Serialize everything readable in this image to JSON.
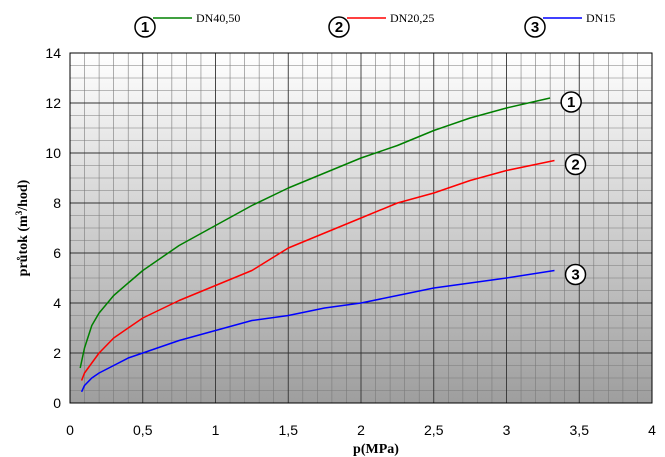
{
  "chart_data": {
    "type": "line",
    "xlabel": "p(MPa)",
    "ylabel_main": "průtok (m",
    "ylabel_sup": "3",
    "ylabel_tail": "/hod)",
    "xlim": [
      0,
      4
    ],
    "ylim": [
      0,
      14
    ],
    "xticks": [
      0,
      0.5,
      1,
      1.5,
      2,
      2.5,
      3,
      3.5,
      4
    ],
    "xtick_labels": [
      "0",
      "0,5",
      "1",
      "1,5",
      "2",
      "2,5",
      "3",
      "3,5",
      "4"
    ],
    "yticks": [
      0,
      2,
      4,
      6,
      8,
      10,
      12,
      14
    ],
    "ytick_labels": [
      "0",
      "2",
      "4",
      "6",
      "8",
      "10",
      "12",
      "14"
    ],
    "grid": true,
    "background": "gradient-gray",
    "legend_position": "top",
    "series": [
      {
        "marker": "1",
        "name": "DN40,50",
        "color": "#008000",
        "x": [
          0.07,
          0.1,
          0.15,
          0.2,
          0.3,
          0.4,
          0.5,
          0.75,
          1.0,
          1.25,
          1.5,
          1.75,
          2.0,
          2.25,
          2.5,
          2.75,
          3.0,
          3.3
        ],
        "y": [
          1.4,
          2.2,
          3.1,
          3.6,
          4.3,
          4.8,
          5.3,
          6.3,
          7.1,
          7.9,
          8.6,
          9.2,
          9.8,
          10.3,
          10.9,
          11.4,
          11.8,
          12.2
        ]
      },
      {
        "marker": "2",
        "name": "DN20,25",
        "color": "#ff0000",
        "x": [
          0.08,
          0.1,
          0.15,
          0.2,
          0.3,
          0.4,
          0.5,
          0.75,
          1.0,
          1.25,
          1.5,
          1.75,
          2.0,
          2.25,
          2.5,
          2.75,
          3.0,
          3.33
        ],
        "y": [
          0.9,
          1.2,
          1.6,
          2.0,
          2.6,
          3.0,
          3.4,
          4.1,
          4.7,
          5.3,
          6.2,
          6.8,
          7.4,
          8.0,
          8.4,
          8.9,
          9.3,
          9.7
        ]
      },
      {
        "marker": "3",
        "name": "DN15",
        "color": "#0000ff",
        "x": [
          0.08,
          0.1,
          0.15,
          0.2,
          0.3,
          0.4,
          0.5,
          0.75,
          1.0,
          1.25,
          1.5,
          1.75,
          2.0,
          2.25,
          2.5,
          2.75,
          3.0,
          3.33
        ],
        "y": [
          0.45,
          0.7,
          1.0,
          1.2,
          1.5,
          1.8,
          2.0,
          2.5,
          2.9,
          3.3,
          3.5,
          3.8,
          4.0,
          4.3,
          4.6,
          4.8,
          5.0,
          5.3
        ]
      }
    ]
  }
}
